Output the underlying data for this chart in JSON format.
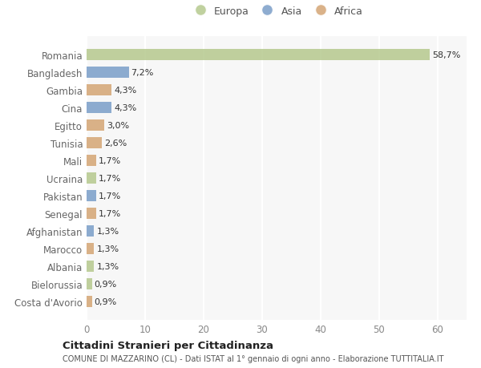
{
  "countries": [
    "Romania",
    "Bangladesh",
    "Gambia",
    "Cina",
    "Egitto",
    "Tunisia",
    "Mali",
    "Ucraina",
    "Pakistan",
    "Senegal",
    "Afghanistan",
    "Marocco",
    "Albania",
    "Bielorussia",
    "Costa d'Avorio"
  ],
  "values": [
    58.7,
    7.2,
    4.3,
    4.3,
    3.0,
    2.6,
    1.7,
    1.7,
    1.7,
    1.7,
    1.3,
    1.3,
    1.3,
    0.9,
    0.9
  ],
  "labels": [
    "58,7%",
    "7,2%",
    "4,3%",
    "4,3%",
    "3,0%",
    "2,6%",
    "1,7%",
    "1,7%",
    "1,7%",
    "1,7%",
    "1,3%",
    "1,3%",
    "1,3%",
    "0,9%",
    "0,9%"
  ],
  "continents": [
    "Europa",
    "Asia",
    "Africa",
    "Asia",
    "Africa",
    "Africa",
    "Africa",
    "Europa",
    "Asia",
    "Africa",
    "Asia",
    "Africa",
    "Europa",
    "Europa",
    "Africa"
  ],
  "colors": {
    "Europa": "#b5c98e",
    "Asia": "#7a9ec8",
    "Africa": "#d4a574"
  },
  "legend_labels": [
    "Europa",
    "Asia",
    "Africa"
  ],
  "title_bold": "Cittadini Stranieri per Cittadinanza",
  "subtitle": "COMUNE DI MAZZARINO (CL) - Dati ISTAT al 1° gennaio di ogni anno - Elaborazione TUTTITALIA.IT",
  "xlim": [
    0,
    65
  ],
  "xticks": [
    0,
    10,
    20,
    30,
    40,
    50,
    60
  ],
  "background_color": "#ffffff",
  "plot_bg_color": "#f7f7f7"
}
